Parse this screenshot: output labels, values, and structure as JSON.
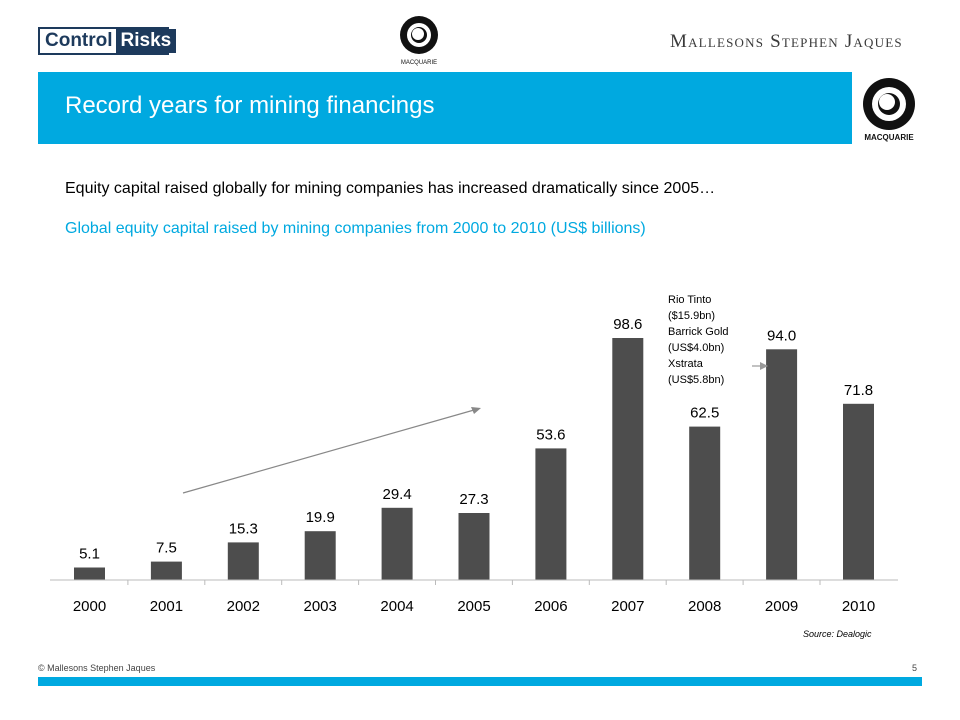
{
  "header": {
    "logo_left_part1": "Control",
    "logo_left_part2": "Risks",
    "logo_center_label": "MACQUARIE",
    "logo_right": "Mallesons Stephen Jaques",
    "logo_box_label": "MACQUARIE"
  },
  "title": "Record years for mining financings",
  "lead": "Equity capital raised globally for mining companies has increased dramatically since 2005…",
  "chart_title": "Global equity capital raised by mining companies  from 2000 to 2010 (US$ billions)",
  "annotation": [
    "Rio Tinto",
    "($15.9bn)",
    "Barrick Gold",
    "(US$4.0bn)",
    "Xstrata",
    "(US$5.8bn)"
  ],
  "source": "Source: Dealogic",
  "footer": {
    "copyright": "© Mallesons Stephen Jaques",
    "page": "5"
  },
  "colors": {
    "accent": "#00a9e0",
    "bar": "#4d4d4d",
    "logo_navy": "#1d3a5c"
  },
  "chart_data": {
    "type": "bar",
    "title": "Global equity capital raised by mining companies  from 2000 to 2010 (US$ billions)",
    "categories": [
      "2000",
      "2001",
      "2002",
      "2003",
      "2004",
      "2005",
      "2006",
      "2007",
      "2008",
      "2009",
      "2010"
    ],
    "values": [
      5.1,
      7.5,
      15.3,
      19.9,
      29.4,
      27.3,
      53.6,
      98.6,
      62.5,
      94.0,
      71.8
    ],
    "value_labels": [
      "5.1",
      "7.5",
      "15.3",
      "19.9",
      "29.4",
      "27.3",
      "53.6",
      "98.6",
      "62.5",
      "94.0",
      "71.8"
    ],
    "xlabel": "",
    "ylabel": "",
    "grid": false,
    "legend": "none"
  }
}
